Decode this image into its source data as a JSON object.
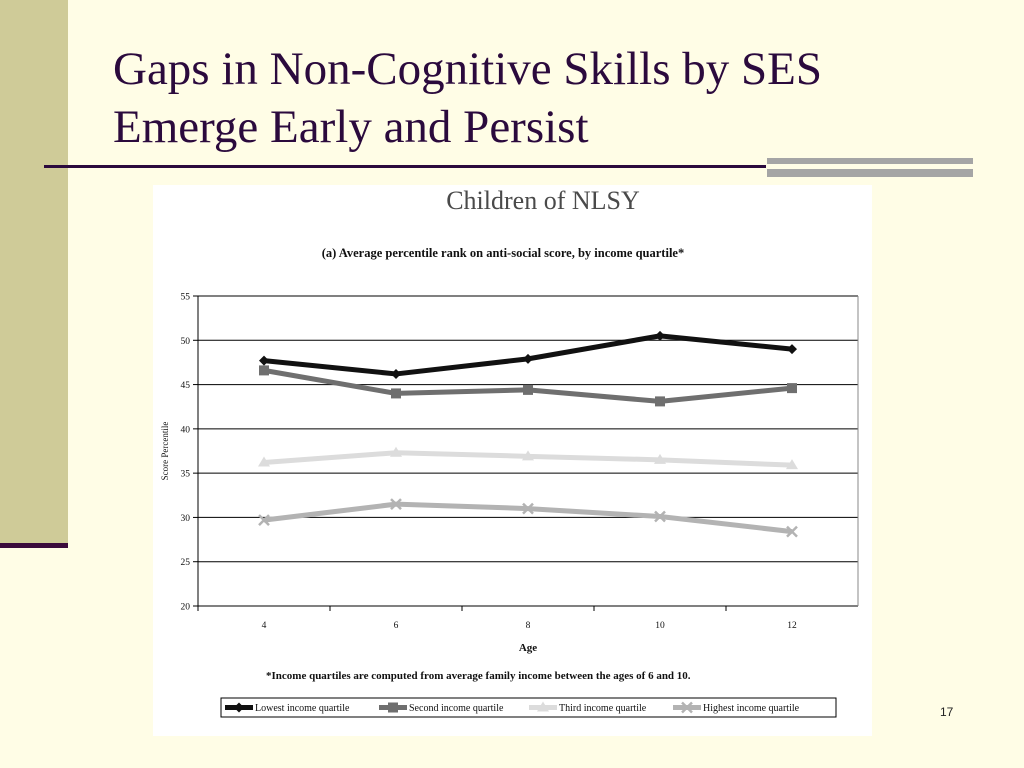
{
  "slide": {
    "title_line1": "Gaps in Non-Cognitive Skills by SES",
    "title_line2": "Emerge Early and Persist",
    "page_number": "17"
  },
  "colors": {
    "background": "#fffde6",
    "sidebar": "#cfcb98",
    "title": "#2b0a3d",
    "accent_bars": "#a5a5a5"
  },
  "chart_data": {
    "type": "line",
    "heading": "Children of NLSY",
    "title": "(a) Average percentile rank on anti-social score, by income quartile*",
    "xlabel": "Age",
    "ylabel": "Score Percentile",
    "x": [
      4,
      6,
      8,
      10,
      12
    ],
    "ylim": [
      20,
      55
    ],
    "yticks": [
      20,
      25,
      30,
      35,
      40,
      45,
      50,
      55
    ],
    "grid": "horizontal",
    "footnote": "*Income quartiles are computed from average family income between the ages of 6 and 10.",
    "legend_placement": "bottom",
    "series": [
      {
        "name": "Lowest income quartile",
        "color": "#111111",
        "marker": "diamond",
        "values": [
          47.7,
          46.2,
          47.9,
          50.5,
          49.0
        ]
      },
      {
        "name": "Second income quartile",
        "color": "#6f6f6f",
        "marker": "square",
        "values": [
          46.6,
          44.0,
          44.4,
          43.1,
          44.6
        ]
      },
      {
        "name": "Third income quartile",
        "color": "#dcdcdc",
        "marker": "triangle",
        "values": [
          36.2,
          37.3,
          36.9,
          36.5,
          35.9
        ]
      },
      {
        "name": "Highest income quartile",
        "color": "#b3b3b3",
        "marker": "x",
        "values": [
          29.7,
          31.5,
          31.0,
          30.1,
          28.4
        ]
      }
    ]
  }
}
